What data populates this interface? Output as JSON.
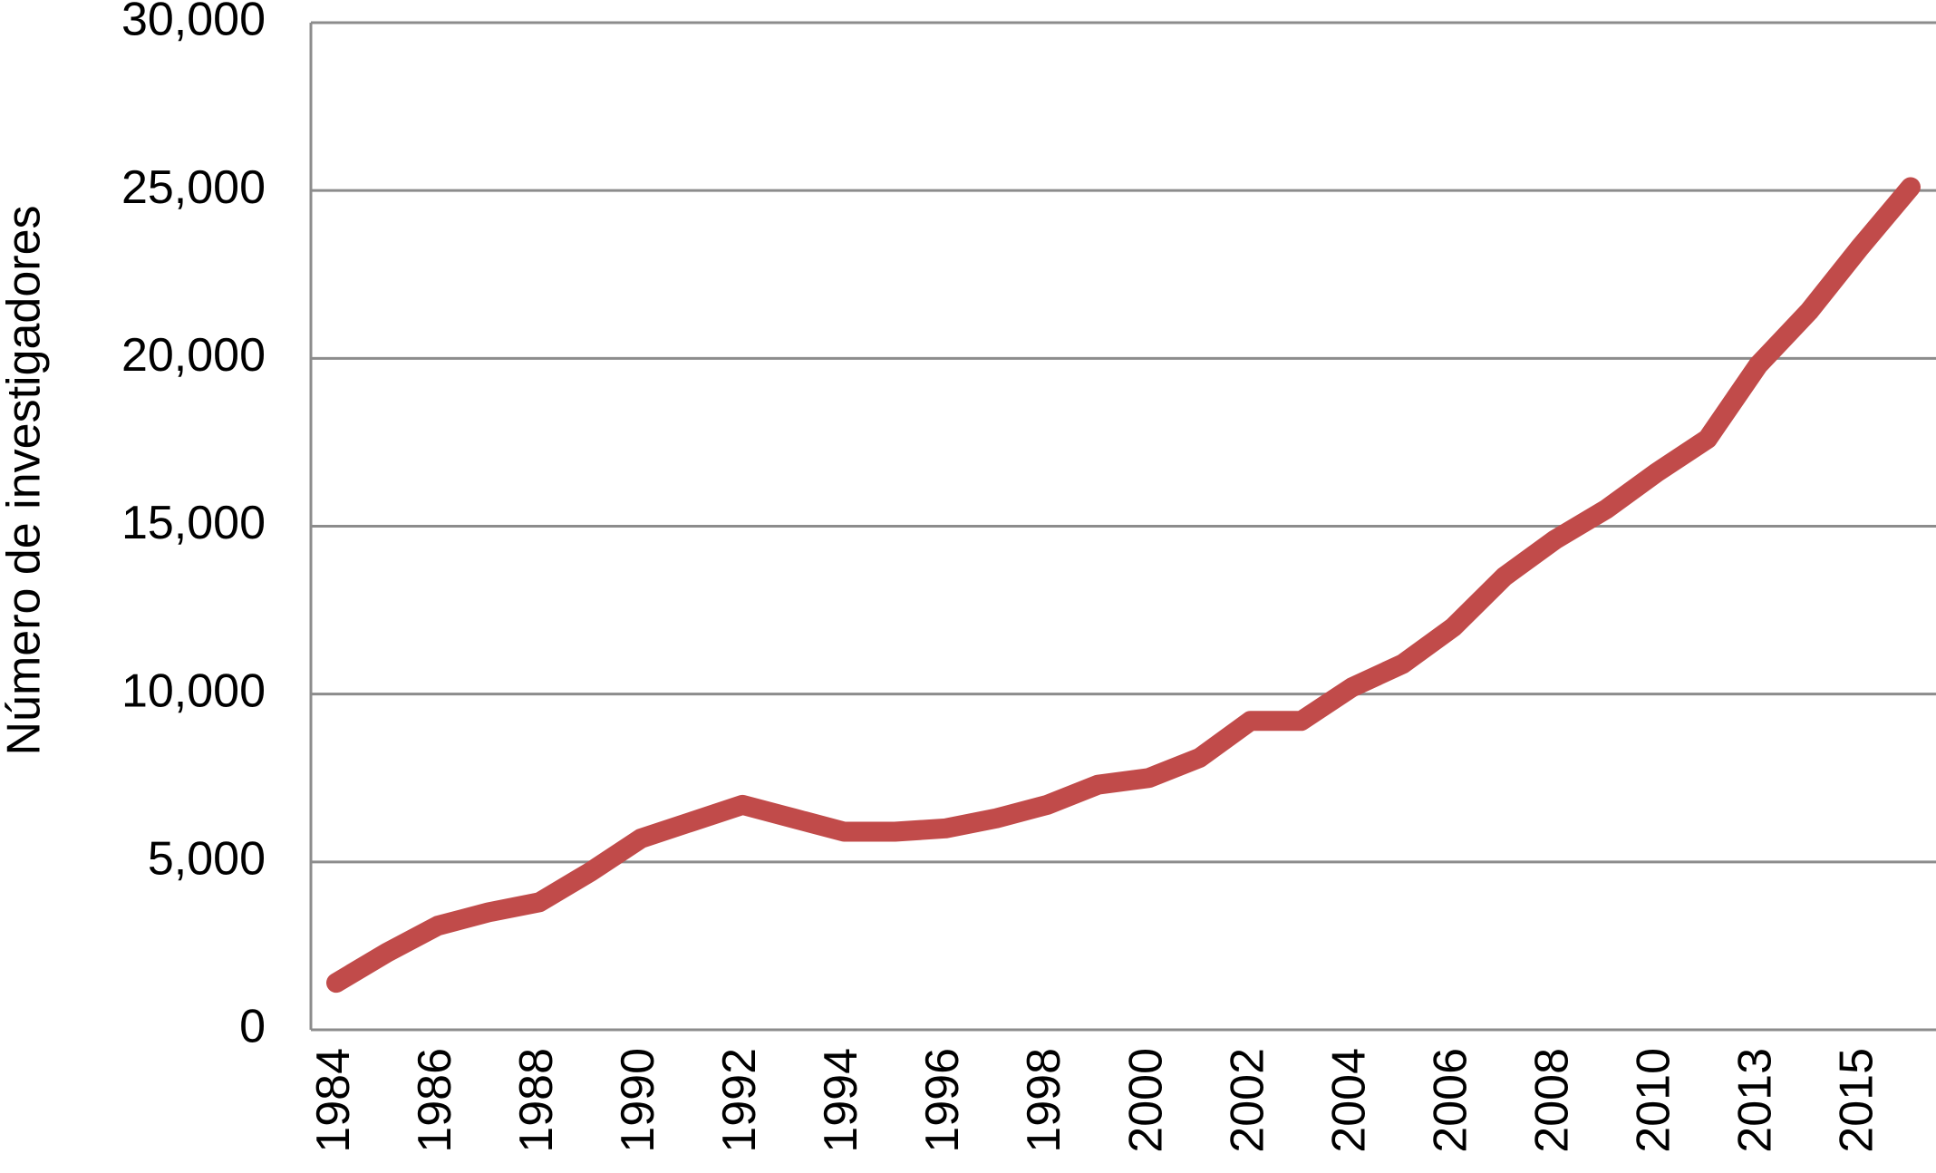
{
  "chart_data": {
    "type": "line",
    "y_label": "Número de investigadores",
    "categories": [
      "1984",
      null,
      "1986",
      null,
      "1988",
      null,
      "1990",
      null,
      "1992",
      null,
      "1994",
      null,
      "1996",
      null,
      "1998",
      null,
      "2000",
      null,
      "2002",
      null,
      "2004",
      null,
      "2006",
      null,
      "2008",
      null,
      "2010",
      null,
      "2013",
      null,
      "2015",
      null
    ],
    "series": [
      {
        "color": "#c14b4a",
        "values": [
          1400,
          2300,
          3100,
          3500,
          3800,
          4700,
          5700,
          6200,
          6700,
          6300,
          5900,
          5900,
          6000,
          6300,
          6700,
          7300,
          7500,
          8100,
          9200,
          9200,
          10200,
          10900,
          12000,
          13500,
          14600,
          15500,
          16600,
          17600,
          19800,
          21400,
          23300,
          25100
        ]
      }
    ],
    "ylim": [
      0,
      30000
    ],
    "yticks": [
      0,
      {
        "value": 5000,
        "label": "5,000"
      },
      {
        "value": 10000,
        "label": "10,000"
      },
      {
        "value": 15000,
        "label": "15,000"
      },
      {
        "value": 20000,
        "label": "20,000"
      },
      {
        "value": 25000,
        "label": "25,000"
      },
      {
        "value": 30000,
        "label": "30,000"
      }
    ],
    "grid": true
  }
}
